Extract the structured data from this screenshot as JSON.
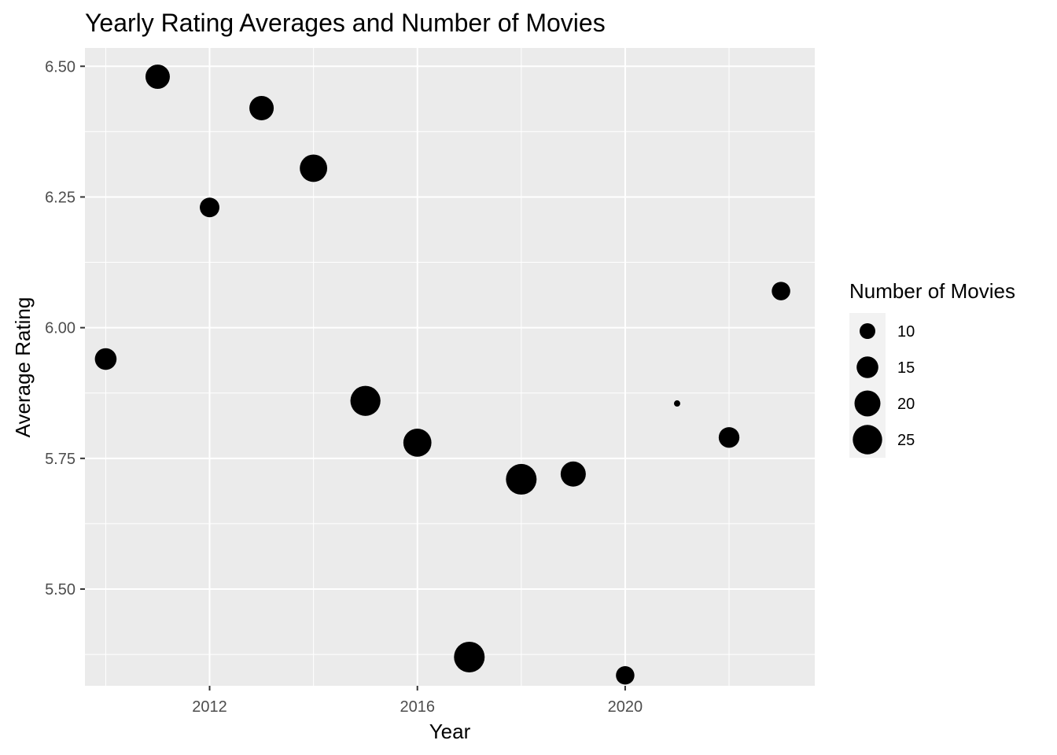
{
  "chart_data": {
    "type": "scatter",
    "title": "Yearly Rating Averages and Number of Movies",
    "xlabel": "Year",
    "ylabel": "Average Rating",
    "xlim": [
      2009.6,
      2023.65
    ],
    "ylim": [
      5.315,
      6.535
    ],
    "x_ticks": [
      2012,
      2016,
      2020
    ],
    "x_tick_labels": [
      "2012",
      "2016",
      "2020"
    ],
    "x_minor_ticks": [
      2010,
      2014,
      2018,
      2022
    ],
    "y_ticks": [
      5.5,
      5.75,
      6.0,
      6.25,
      6.5
    ],
    "y_tick_labels": [
      "5.50",
      "5.75",
      "6.00",
      "6.25",
      "6.50"
    ],
    "y_minor_ticks": [
      5.375,
      5.625,
      5.875,
      6.125,
      6.375
    ],
    "grid": true,
    "panel_color": "#ebebeb",
    "point_color": "#000000",
    "size_legend": {
      "title": "Number of Movies",
      "placement": "right",
      "values": [
        10,
        15,
        20,
        25
      ],
      "labels": [
        "10",
        "15",
        "20",
        "25"
      ],
      "size_range": [
        6,
        27
      ]
    },
    "points": [
      {
        "year": 2010,
        "rating": 5.94,
        "movies": 15
      },
      {
        "year": 2011,
        "rating": 6.48,
        "movies": 18
      },
      {
        "year": 2012,
        "rating": 6.23,
        "movies": 13
      },
      {
        "year": 2013,
        "rating": 6.42,
        "movies": 18
      },
      {
        "year": 2014,
        "rating": 6.305,
        "movies": 22
      },
      {
        "year": 2015,
        "rating": 5.86,
        "movies": 26
      },
      {
        "year": 2016,
        "rating": 5.78,
        "movies": 23
      },
      {
        "year": 2017,
        "rating": 5.37,
        "movies": 27
      },
      {
        "year": 2018,
        "rating": 5.71,
        "movies": 27
      },
      {
        "year": 2019,
        "rating": 5.72,
        "movies": 19
      },
      {
        "year": 2020,
        "rating": 5.335,
        "movies": 12
      },
      {
        "year": 2021,
        "rating": 5.855,
        "movies": 7
      },
      {
        "year": 2022,
        "rating": 5.79,
        "movies": 14
      },
      {
        "year": 2023,
        "rating": 6.07,
        "movies": 12
      }
    ]
  }
}
